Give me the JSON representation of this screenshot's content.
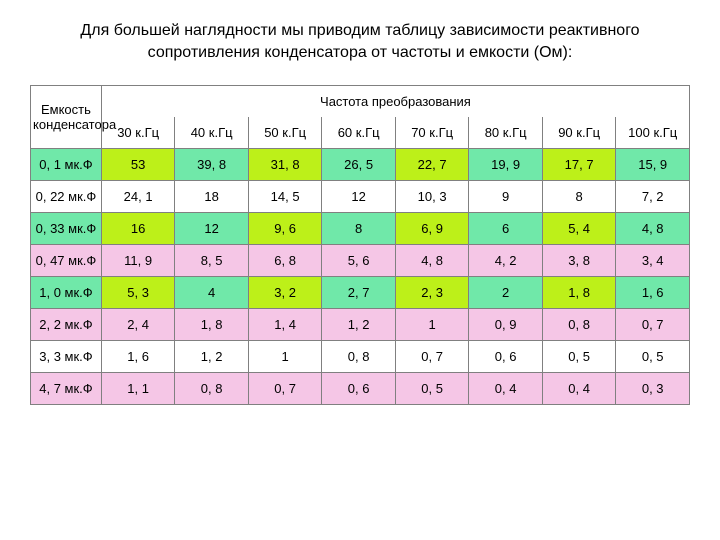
{
  "title": "Для большей наглядности мы приводим таблицу зависимости реактивного сопротивления конденсатора от частоты и емкости (Ом):",
  "table": {
    "corner_label": "Емкость конденсатора",
    "freq_header": "Частота преобразования",
    "columns": [
      "30 к.Гц",
      "40 к.Гц",
      "50 к.Гц",
      "60 к.Гц",
      "70 к.Гц",
      "80 к.Гц",
      "90 к.Гц",
      "100 к.Гц"
    ],
    "rows": [
      {
        "label": "0, 1 мк.Ф",
        "cells": [
          "53",
          "39, 8",
          "31, 8",
          "26, 5",
          "22, 7",
          "19, 9",
          "17, 7",
          "15, 9"
        ],
        "colors": [
          "#70e8a9",
          "#bdf019",
          "#70e8a9",
          "#bdf019",
          "#70e8a9",
          "#bdf019",
          "#70e8a9",
          "#bdf019",
          "#70e8a9"
        ]
      },
      {
        "label": "0, 22 мк.Ф",
        "cells": [
          "24, 1",
          "18",
          "14, 5",
          "12",
          "10, 3",
          "9",
          "8",
          "7, 2"
        ],
        "colors": [
          "#ffffff",
          "#ffffff",
          "#ffffff",
          "#ffffff",
          "#ffffff",
          "#ffffff",
          "#ffffff",
          "#ffffff",
          "#ffffff"
        ]
      },
      {
        "label": "0, 33 мк.Ф",
        "cells": [
          "16",
          "12",
          "9, 6",
          "8",
          "6, 9",
          "6",
          "5, 4",
          "4, 8"
        ],
        "colors": [
          "#70e8a9",
          "#bdf019",
          "#70e8a9",
          "#bdf019",
          "#70e8a9",
          "#bdf019",
          "#70e8a9",
          "#bdf019",
          "#70e8a9"
        ]
      },
      {
        "label": "0, 47 мк.Ф",
        "cells": [
          "11, 9",
          "8, 5",
          "6, 8",
          "5, 6",
          "4, 8",
          "4, 2",
          "3, 8",
          "3, 4"
        ],
        "colors": [
          "#f5c6e6",
          "#f5c6e6",
          "#f5c6e6",
          "#f5c6e6",
          "#f5c6e6",
          "#f5c6e6",
          "#f5c6e6",
          "#f5c6e6",
          "#f5c6e6"
        ]
      },
      {
        "label": "1, 0 мк.Ф",
        "cells": [
          "5, 3",
          "4",
          "3, 2",
          "2, 7",
          "2, 3",
          "2",
          "1, 8",
          "1, 6"
        ],
        "colors": [
          "#70e8a9",
          "#bdf019",
          "#70e8a9",
          "#bdf019",
          "#70e8a9",
          "#bdf019",
          "#70e8a9",
          "#bdf019",
          "#70e8a9"
        ]
      },
      {
        "label": "2, 2 мк.Ф",
        "cells": [
          "2, 4",
          "1, 8",
          "1, 4",
          "1, 2",
          "1",
          "0, 9",
          "0, 8",
          "0, 7"
        ],
        "colors": [
          "#f5c6e6",
          "#f5c6e6",
          "#f5c6e6",
          "#f5c6e6",
          "#f5c6e6",
          "#f5c6e6",
          "#f5c6e6",
          "#f5c6e6",
          "#f5c6e6"
        ]
      },
      {
        "label": "3, 3 мк.Ф",
        "cells": [
          "1, 6",
          "1, 2",
          "1",
          "0, 8",
          "0, 7",
          "0, 6",
          "0, 5",
          "0, 5"
        ],
        "colors": [
          "#ffffff",
          "#ffffff",
          "#ffffff",
          "#ffffff",
          "#ffffff",
          "#ffffff",
          "#ffffff",
          "#ffffff",
          "#ffffff"
        ]
      },
      {
        "label": "4, 7 мк.Ф",
        "cells": [
          "1, 1",
          "0, 8",
          "0, 7",
          "0, 6",
          "0, 5",
          "0, 4",
          "0, 4",
          "0, 3"
        ],
        "colors": [
          "#f5c6e6",
          "#f5c6e6",
          "#f5c6e6",
          "#f5c6e6",
          "#f5c6e6",
          "#f5c6e6",
          "#f5c6e6",
          "#f5c6e6",
          "#f5c6e6"
        ]
      }
    ]
  }
}
